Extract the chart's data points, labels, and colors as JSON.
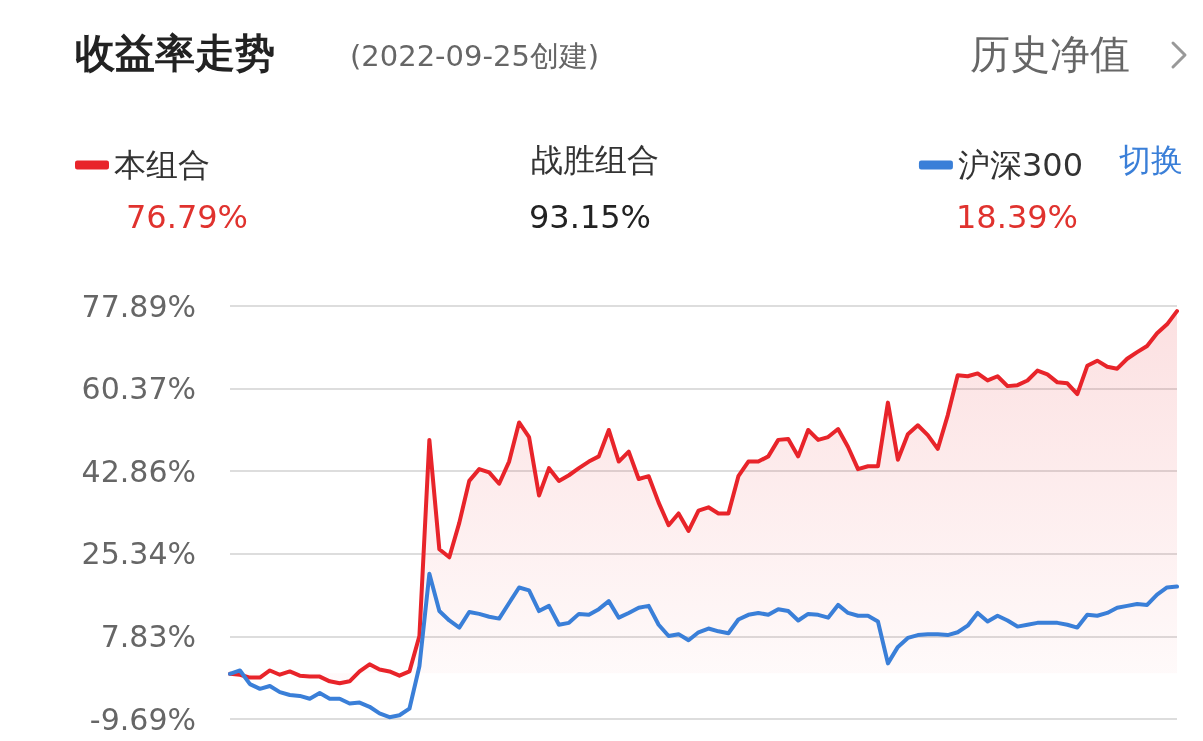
{
  "chart_data": {
    "type": "line",
    "title": "收益率走势",
    "subtitle": "(2022-09-25创建)",
    "annotations": [
      "历史净值",
      "76.79%",
      "战胜组合",
      "93.15%",
      "18.39%",
      "切换"
    ],
    "categories": [
      null,
      null,
      null,
      null,
      null,
      null,
      null,
      null,
      null,
      null,
      null,
      null,
      null,
      null,
      null,
      null,
      null,
      null,
      null,
      null,
      null,
      null,
      null,
      null,
      null,
      null,
      null,
      null,
      null,
      null,
      null,
      null,
      null,
      null,
      null,
      null,
      null,
      null,
      null,
      null,
      null,
      null,
      null,
      null,
      null,
      null,
      null,
      null,
      null,
      null,
      null,
      null,
      null,
      null,
      null,
      null,
      null,
      null,
      null,
      null,
      null,
      null,
      null,
      null,
      null,
      null,
      null,
      null,
      null,
      null,
      null,
      null,
      null,
      null,
      null,
      null,
      null,
      null,
      null,
      null,
      null,
      null,
      null,
      null,
      null,
      null,
      null,
      null,
      null,
      null,
      null,
      null,
      null,
      null,
      null,
      null
    ],
    "series": [
      {
        "name": "本组合",
        "type": "area",
        "color": "#e8242a",
        "values": [
          -0.1,
          -0.3,
          -0.9,
          -0.9,
          0.6,
          -0.3,
          0.4,
          -0.5,
          -0.7,
          -0.7,
          -1.7,
          -2.1,
          -1.7,
          0.4,
          1.9,
          0.8,
          0.4,
          -0.5,
          0.4,
          7.9,
          49.5,
          26.3,
          24.6,
          31.9,
          40.8,
          43.3,
          42.6,
          40.2,
          44.9,
          53.2,
          50.1,
          37.7,
          43.5,
          40.8,
          42.0,
          43.5,
          44.9,
          46.0,
          51.6,
          44.9,
          47.0,
          41.2,
          41.8,
          36.2,
          31.4,
          33.9,
          30.2,
          34.5,
          35.2,
          33.9,
          33.9,
          41.8,
          44.9,
          44.9,
          46.0,
          49.5,
          49.7,
          46.0,
          51.6,
          49.5,
          50.1,
          51.8,
          48.0,
          43.3,
          43.9,
          43.9,
          57.4,
          45.3,
          50.7,
          52.6,
          50.5,
          47.6,
          54.7,
          63.2,
          63.0,
          63.6,
          62.1,
          63.0,
          60.9,
          61.1,
          62.1,
          64.2,
          63.4,
          61.7,
          61.5,
          59.2,
          65.2,
          66.3,
          65.0,
          64.6,
          66.7,
          68.1,
          69.4,
          72.1,
          74.0,
          76.8
        ]
      },
      {
        "name": "沪深300",
        "type": "line",
        "color": "#3a7fd8",
        "values": [
          -0.1,
          0.6,
          -2.3,
          -3.3,
          -2.7,
          -4.0,
          -4.6,
          -4.8,
          -5.4,
          -4.2,
          -5.4,
          -5.4,
          -6.4,
          -6.2,
          -7.1,
          -8.5,
          -9.3,
          -8.9,
          -7.5,
          1.5,
          21.1,
          13.2,
          11.2,
          9.7,
          13.0,
          12.6,
          12.0,
          11.6,
          14.9,
          18.2,
          17.6,
          13.2,
          14.3,
          10.3,
          10.7,
          12.6,
          12.4,
          13.6,
          15.3,
          11.8,
          12.8,
          13.9,
          14.3,
          10.3,
          7.9,
          8.3,
          7.0,
          8.7,
          9.5,
          8.9,
          8.5,
          11.4,
          12.4,
          12.8,
          12.4,
          13.6,
          13.2,
          11.2,
          12.6,
          12.4,
          11.8,
          14.5,
          12.8,
          12.2,
          12.2,
          11.0,
          2.1,
          5.6,
          7.5,
          8.1,
          8.3,
          8.3,
          8.1,
          8.7,
          10.1,
          12.8,
          11.0,
          12.2,
          11.2,
          9.9,
          10.3,
          10.7,
          10.7,
          10.7,
          10.3,
          9.7,
          12.4,
          12.2,
          12.8,
          13.9,
          14.3,
          14.7,
          14.5,
          16.7,
          18.2,
          18.4
        ]
      }
    ],
    "ylim": [
      -9.69,
      77.89
    ],
    "yticks": [
      {
        "value": -9.69,
        "label": "-9.69%"
      },
      {
        "value": 7.83,
        "label": "7.83%"
      },
      {
        "value": 25.34,
        "label": "25.34%"
      },
      {
        "value": 42.86,
        "label": "42.86%"
      },
      {
        "value": 60.37,
        "label": "60.37%"
      },
      {
        "value": 77.89,
        "label": "77.89%"
      }
    ],
    "grid": "y",
    "legend": "top",
    "tick_labels": "y",
    "marker": "none",
    "line_style": "solid"
  }
}
